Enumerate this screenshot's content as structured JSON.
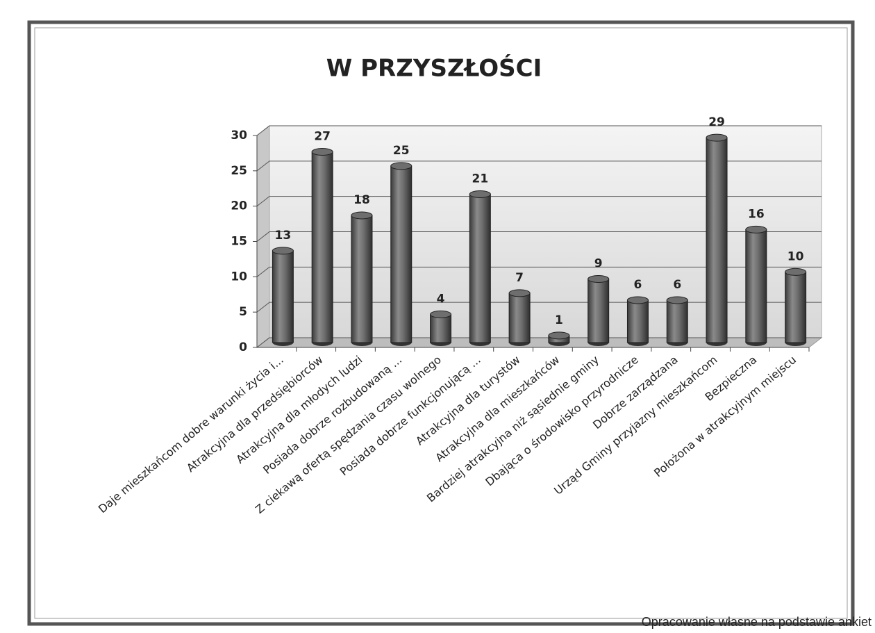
{
  "chart_data": {
    "type": "bar",
    "title": "W PRZYSZŁOŚCI",
    "categories": [
      "Daje mieszkańcom dobre warunki życia i...",
      "Atrakcyjna dla przedsiębiorców",
      "Atrakcyjna dla młodych ludzi",
      "Posiada dobrze rozbudowaną ...",
      "Z ciekawą ofertą spędzania czasu wolnego",
      "Posiada dobrze funkcjonującą ...",
      "Atrakcyjna dla turystów",
      "Atrakcyjna dla mieszkańców",
      "Bardziej atrakcyjna niż sąsiednie gminy",
      "Dbająca o środowisko przyrodnicze",
      "Dobrze zarządzana",
      "Urząd Gminy przyjazny mieszkańcom",
      "Bezpieczna",
      "Położona w atrakcyjnym  miejscu"
    ],
    "values": [
      13,
      27,
      18,
      25,
      4,
      21,
      7,
      1,
      9,
      6,
      6,
      29,
      16,
      10
    ],
    "color": "#6e6e6e",
    "ylim": [
      0,
      30
    ],
    "yticks": [
      0,
      5,
      10,
      15,
      20,
      25,
      30
    ],
    "grid": true,
    "source": "Opracowanie własne na podstawie ankiet"
  }
}
